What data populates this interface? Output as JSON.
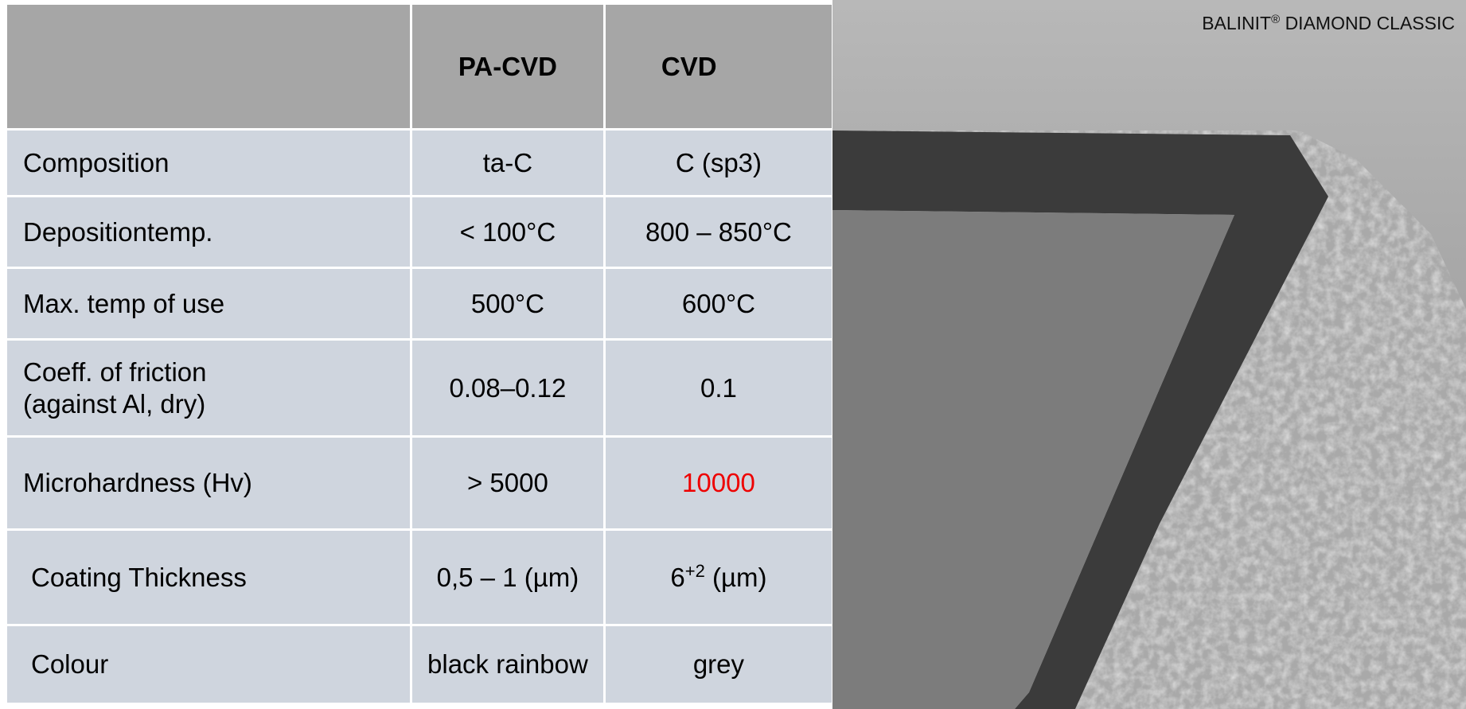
{
  "table": {
    "header": [
      "PA-CVD",
      "CVD"
    ],
    "rows": [
      {
        "label": [
          "Composition"
        ],
        "pacvd": "ta-C",
        "cvd": "C (sp3)"
      },
      {
        "label": [
          "Depositiontemp."
        ],
        "pacvd": "< 100°C",
        "cvd": "800 – 850°C"
      },
      {
        "label": [
          "Max. temp of use"
        ],
        "pacvd": "500°C",
        "cvd": "600°C"
      },
      {
        "label": [
          "Coeff. of friction",
          "(against Al, dry)"
        ],
        "pacvd": "0.08–0.12",
        "cvd": "0.1"
      },
      {
        "label": [
          "Microhardness (Hv)"
        ],
        "pacvd": "> 5000",
        "cvd": "10000"
      },
      {
        "label": [
          "Coating Thickness"
        ],
        "pacvd": "0,5 – 1 (µm)",
        "cvd": {
          "base": "6",
          "sup": "+2",
          "unit": "(µm)"
        }
      },
      {
        "label": [
          "Colour"
        ],
        "pacvd": "black rainbow",
        "cvd": "grey"
      }
    ]
  },
  "image": {
    "caption": {
      "brand": "BALINIT",
      "mark": "®",
      "name": "DIAMOND CLASSIC"
    }
  }
}
